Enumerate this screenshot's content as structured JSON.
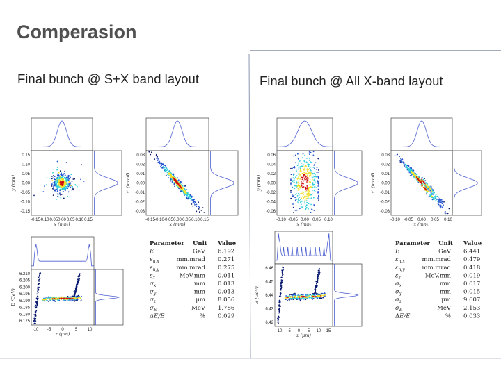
{
  "header": {
    "title": "Comperasion"
  },
  "panels": [
    {
      "heading": "Final bunch @ S+X band layout",
      "plots": [
        {
          "xlabel": "x (mm)",
          "ylabel": "y (mm)",
          "xticks": [
            "-0.15",
            "-0.10",
            "-0.05",
            "0.00",
            "0.05",
            "0.10",
            "0.15"
          ],
          "yticks": [
            "0.15",
            "0.10",
            "0.05",
            "0.00",
            "-0.05",
            "-0.10",
            "-0.15"
          ]
        },
        {
          "xlabel": "x (mm)",
          "ylabel": "x' (mrad)",
          "xticks": [
            "-0.15",
            "-0.10",
            "-0.05",
            "0.00",
            "0.05",
            "0.10",
            "0.15"
          ],
          "yticks": [
            "0.03",
            "0.02",
            "0.01",
            "0.00",
            "-0.01",
            "-0.02",
            "-0.03"
          ]
        },
        {
          "xlabel": "z (μm)",
          "ylabel": "E (GeV)",
          "xticks": [
            "-10",
            "-5",
            "0",
            "5",
            "10"
          ],
          "yticks": [
            "6.210",
            "6.205",
            "6.200",
            "6.195",
            "6.190",
            "6.185",
            "6.180",
            "6.175"
          ]
        }
      ],
      "table": {
        "columns": [
          "Parameter",
          "Unit",
          "Value"
        ],
        "rows": [
          [
            {
              "sym": "E"
            },
            "GeV",
            "6.192"
          ],
          [
            {
              "sym": "ε",
              "sub": "n,x"
            },
            "mm.mrad",
            "0.271"
          ],
          [
            {
              "sym": "ε",
              "sub": "n,y"
            },
            "mm.mrad",
            "0.275"
          ],
          [
            {
              "sym": "ε",
              "sub": "z"
            },
            "MeV.mm",
            "0.011"
          ],
          [
            {
              "sym": "σ",
              "sub": "x"
            },
            "mm",
            "0.013"
          ],
          [
            {
              "sym": "σ",
              "sub": "y"
            },
            "mm",
            "0.013"
          ],
          [
            {
              "sym": "σ",
              "sub": "z"
            },
            "μm",
            "8.056"
          ],
          [
            {
              "sym": "σ",
              "sub": "E"
            },
            "MeV",
            "1.786"
          ],
          [
            {
              "sym": "ΔE/E"
            },
            "%",
            "0.029"
          ]
        ]
      }
    },
    {
      "heading": "Final bunch @ All X-band layout",
      "plots": [
        {
          "xlabel": "x (mm)",
          "ylabel": "y (mm)",
          "xticks": [
            "-0.10",
            "-0.05",
            "0.00",
            "0.05",
            "0.10"
          ],
          "yticks": [
            "0.06",
            "0.04",
            "0.02",
            "0.00",
            "-0.02",
            "-0.04",
            "-0.06"
          ]
        },
        {
          "xlabel": "x (mm)",
          "ylabel": "x' (mrad)",
          "xticks": [
            "-0.10",
            "-0.05",
            "0.00",
            "0.05",
            "0.10"
          ],
          "yticks": [
            "0.03",
            "0.02",
            "0.01",
            "0.00",
            "-0.01",
            "-0.02",
            "-0.03"
          ]
        },
        {
          "xlabel": "z (μm)",
          "ylabel": "E (GeV)",
          "xticks": [
            "-10",
            "-5",
            "0",
            "5",
            "10",
            "15"
          ],
          "yticks": [
            "6.46",
            "6.45",
            "6.44",
            "6.43",
            "6.42"
          ]
        }
      ],
      "table": {
        "columns": [
          "Parameter",
          "Unit",
          "Value"
        ],
        "rows": [
          [
            {
              "sym": "E"
            },
            "GeV",
            "6.441"
          ],
          [
            {
              "sym": "ε",
              "sub": "n,x"
            },
            "mm.mrad",
            "0.479"
          ],
          [
            {
              "sym": "ε",
              "sub": "n,y"
            },
            "mm.mrad",
            "0.418"
          ],
          [
            {
              "sym": "ε",
              "sub": "z"
            },
            "MeV.mm",
            "0.019"
          ],
          [
            {
              "sym": "σ",
              "sub": "x"
            },
            "mm",
            "0.017"
          ],
          [
            {
              "sym": "σ",
              "sub": "y"
            },
            "mm",
            "0.015"
          ],
          [
            {
              "sym": "σ",
              "sub": "z"
            },
            "μm",
            "9.607"
          ],
          [
            {
              "sym": "σ",
              "sub": "E"
            },
            "MeV",
            "2.153"
          ],
          [
            {
              "sym": "ΔE/E"
            },
            "%",
            "0.033"
          ]
        ]
      }
    }
  ]
}
